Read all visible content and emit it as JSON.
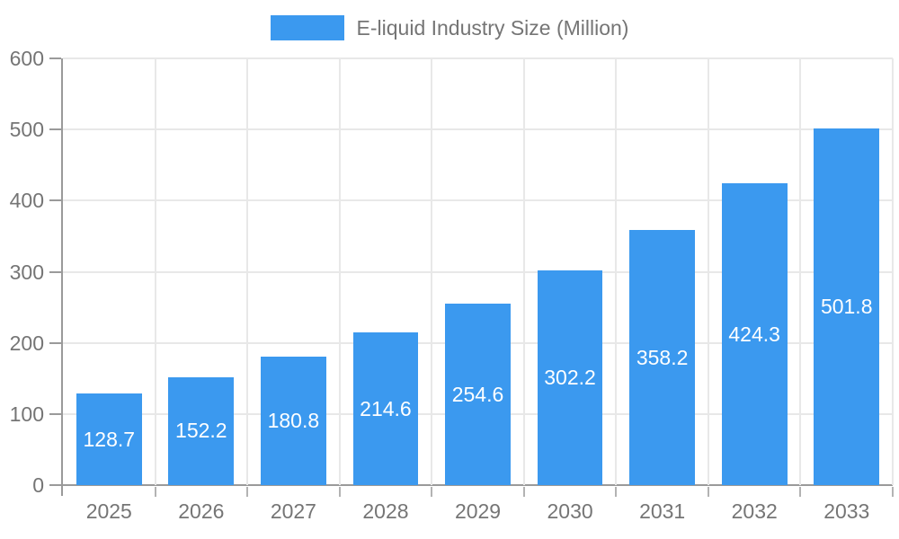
{
  "legend": {
    "label": "E-liquid Industry Size (Million)"
  },
  "chart_data": {
    "type": "bar",
    "title": "E-liquid Industry Size (Million)",
    "series_name": "E-liquid Industry Size (Million)",
    "categories": [
      "2025",
      "2026",
      "2027",
      "2028",
      "2029",
      "2030",
      "2031",
      "2032",
      "2033"
    ],
    "values": [
      128.7,
      152.2,
      180.8,
      214.6,
      254.6,
      302.2,
      358.2,
      424.3,
      501.8
    ],
    "xlabel": "",
    "ylabel": "",
    "ylim": [
      0,
      600
    ],
    "yticks": [
      0,
      100,
      200,
      300,
      400,
      500,
      600
    ],
    "grid": true,
    "legend_position": "top-center",
    "value_labels": "inside-center-white",
    "colors": {
      "bar": "#3b99ef",
      "value_label": "#ffffff",
      "axis_text": "#757575",
      "grid_line": "#e8e8e8",
      "axis_line": "#9a9a9a"
    }
  }
}
